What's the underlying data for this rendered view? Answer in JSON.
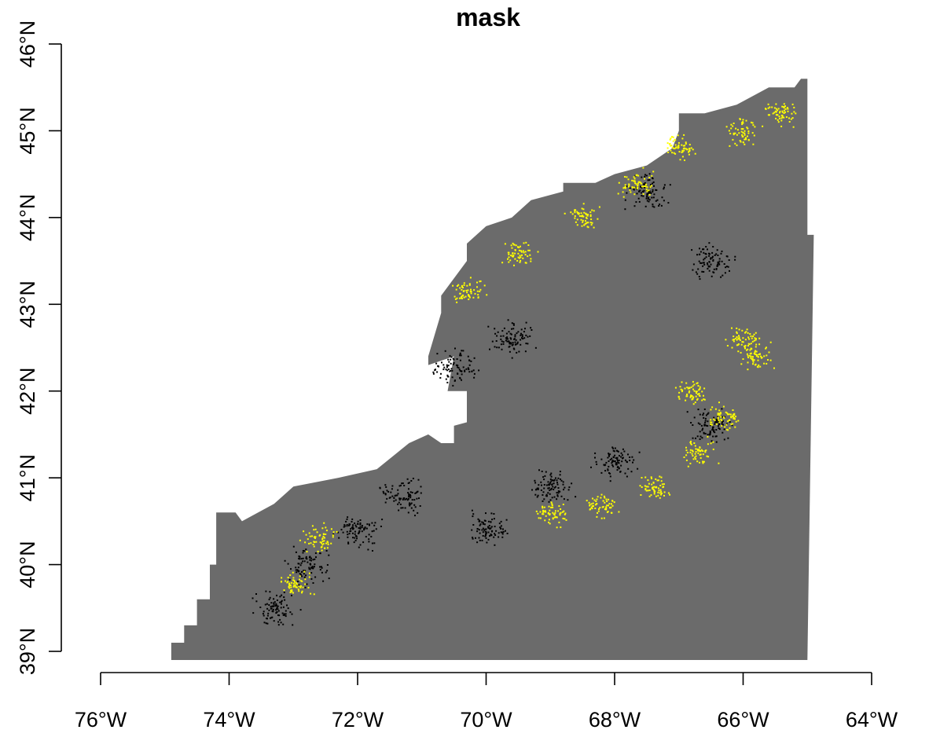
{
  "title": "mask",
  "colors": {
    "mask_fill": "#6b6b6b",
    "absence_points": "#000000",
    "presence_points": "#ffff00",
    "background": "#ffffff"
  },
  "axes": {
    "x_ticks": [
      "76°W",
      "74°W",
      "72°W",
      "70°W",
      "68°W",
      "66°W",
      "64°W"
    ],
    "y_ticks": [
      "39°N",
      "40°N",
      "41°N",
      "42°N",
      "43°N",
      "44°N",
      "45°N",
      "46°N"
    ]
  },
  "chart_data": {
    "type": "scatter",
    "title": "mask",
    "xlim": [
      -76,
      -64
    ],
    "ylim": [
      39,
      46
    ],
    "x_tick_values": [
      -76,
      -74,
      -72,
      -70,
      -68,
      -66,
      -64
    ],
    "y_tick_values": [
      39,
      40,
      41,
      42,
      43,
      44,
      45,
      46
    ],
    "mask_outline_lonlat": [
      [
        -74.9,
        38.9
      ],
      [
        -74.9,
        39.1
      ],
      [
        -74.7,
        39.1
      ],
      [
        -74.7,
        39.3
      ],
      [
        -74.5,
        39.3
      ],
      [
        -74.5,
        39.6
      ],
      [
        -74.3,
        39.6
      ],
      [
        -74.3,
        40.0
      ],
      [
        -74.2,
        40.0
      ],
      [
        -74.2,
        40.6
      ],
      [
        -73.9,
        40.6
      ],
      [
        -73.8,
        40.5
      ],
      [
        -73.3,
        40.7
      ],
      [
        -73.0,
        40.9
      ],
      [
        -72.3,
        41.0
      ],
      [
        -71.7,
        41.1
      ],
      [
        -71.2,
        41.4
      ],
      [
        -70.9,
        41.5
      ],
      [
        -70.7,
        41.4
      ],
      [
        -70.5,
        41.4
      ],
      [
        -70.5,
        41.6
      ],
      [
        -70.0,
        41.7
      ],
      [
        -70.3,
        41.5
      ],
      [
        -70.3,
        42.0
      ],
      [
        -70.6,
        42.0
      ],
      [
        -70.5,
        42.4
      ],
      [
        -70.9,
        42.3
      ],
      [
        -70.9,
        42.4
      ],
      [
        -70.7,
        42.9
      ],
      [
        -70.7,
        43.1
      ],
      [
        -70.3,
        43.5
      ],
      [
        -70.3,
        43.7
      ],
      [
        -70.0,
        43.9
      ],
      [
        -69.6,
        44.0
      ],
      [
        -69.3,
        44.2
      ],
      [
        -68.8,
        44.3
      ],
      [
        -68.8,
        44.4
      ],
      [
        -68.3,
        44.4
      ],
      [
        -68.0,
        44.5
      ],
      [
        -67.5,
        44.6
      ],
      [
        -67.1,
        44.8
      ],
      [
        -67.0,
        45.0
      ],
      [
        -67.0,
        45.2
      ],
      [
        -66.6,
        45.2
      ],
      [
        -66.1,
        45.3
      ],
      [
        -65.6,
        45.5
      ],
      [
        -65.2,
        45.5
      ],
      [
        -65.1,
        45.6
      ],
      [
        -65.0,
        45.6
      ],
      [
        -65.0,
        43.8
      ],
      [
        -64.9,
        43.8
      ],
      [
        -65.0,
        38.9
      ],
      [
        -67.6,
        38.9
      ],
      [
        -67.6,
        38.9
      ],
      [
        -72.4,
        38.9
      ],
      [
        -74.9,
        38.9
      ]
    ],
    "presence_clusters_lonlat": [
      [
        -70.3,
        43.2
      ],
      [
        -69.5,
        43.6
      ],
      [
        -68.5,
        44.0
      ],
      [
        -67.7,
        44.4
      ],
      [
        -67.0,
        44.8
      ],
      [
        -66.0,
        45.0
      ],
      [
        -65.4,
        45.2
      ],
      [
        -66.0,
        42.6
      ],
      [
        -65.8,
        42.4
      ],
      [
        -66.8,
        42.0
      ],
      [
        -66.3,
        41.7
      ],
      [
        -66.7,
        41.3
      ],
      [
        -67.4,
        40.9
      ],
      [
        -68.2,
        40.7
      ],
      [
        -69.0,
        40.6
      ],
      [
        -73.0,
        39.8
      ],
      [
        -72.6,
        40.3
      ]
    ],
    "absence_clusters_lonlat": [
      [
        -73.3,
        39.5
      ],
      [
        -72.8,
        40.0
      ],
      [
        -72.0,
        40.4
      ],
      [
        -71.3,
        40.8
      ],
      [
        -70.0,
        40.4
      ],
      [
        -69.0,
        40.9
      ],
      [
        -69.6,
        42.6
      ],
      [
        -70.5,
        42.3
      ],
      [
        -68.0,
        41.2
      ],
      [
        -66.5,
        41.6
      ],
      [
        -66.5,
        43.5
      ],
      [
        -67.5,
        44.3
      ]
    ]
  }
}
